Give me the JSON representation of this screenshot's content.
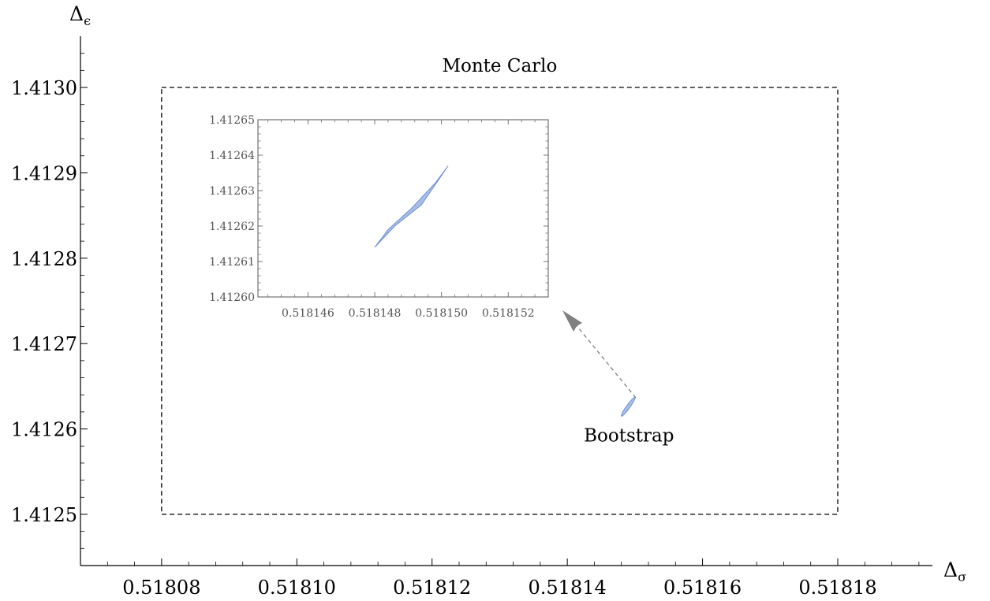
{
  "chart_data": [
    {
      "type": "scatter",
      "xlabel": "Δσ",
      "ylabel": "Δϵ",
      "xlim": [
        0.518068,
        0.518194
      ],
      "ylim": [
        1.41244,
        1.41306
      ],
      "x_ticks": [
        "0.51808",
        "0.51810",
        "0.51812",
        "0.51814",
        "0.51816",
        "0.51818"
      ],
      "x_tick_values": [
        0.51808,
        0.5181,
        0.51812,
        0.51814,
        0.51816,
        0.51818
      ],
      "y_ticks": [
        "1.4125",
        "1.4126",
        "1.4127",
        "1.4128",
        "1.4129",
        "1.4130"
      ],
      "y_tick_values": [
        1.4125,
        1.4126,
        1.4127,
        1.4128,
        1.4129,
        1.413
      ],
      "regions": [
        {
          "name": "Monte Carlo",
          "shape": "rectangle",
          "style": "dashed",
          "x_range": [
            0.51808,
            0.51818
          ],
          "y_range": [
            1.4125,
            1.413
          ]
        },
        {
          "name": "Bootstrap",
          "shape": "ellipse",
          "style": "filled",
          "center": [
            0.518149,
            1.412626
          ],
          "x_extent": [
            0.518148,
            0.51815
          ],
          "y_extent": [
            1.412615,
            1.412637
          ]
        }
      ],
      "annotations": [
        "Monte Carlo",
        "Bootstrap"
      ],
      "grid": false
    },
    {
      "type": "scatter",
      "inset": true,
      "xlim": [
        0.5181445,
        0.5181532
      ],
      "ylim": [
        1.4126,
        1.41265
      ],
      "x_ticks": [
        "0.518146",
        "0.518148",
        "0.518150",
        "0.518152"
      ],
      "x_tick_values": [
        0.518146,
        0.518148,
        0.51815,
        0.518152
      ],
      "y_ticks": [
        "1.41260",
        "1.41261",
        "1.41262",
        "1.41263",
        "1.41264",
        "1.41265"
      ],
      "y_tick_values": [
        1.4126,
        1.41261,
        1.41262,
        1.41263,
        1.41264,
        1.41265
      ],
      "region_outline": [
        [
          0.518148,
          1.412614
        ],
        [
          0.5181486,
          1.41262
        ],
        [
          0.5181494,
          1.412626
        ],
        [
          0.5181502,
          1.412637
        ],
        [
          0.5181498,
          1.412632
        ],
        [
          0.5181491,
          1.412625
        ],
        [
          0.5181484,
          1.412619
        ],
        [
          0.518148,
          1.412614
        ]
      ],
      "grid": false
    }
  ],
  "colors": {
    "region_fill": "#a7bfe8",
    "region_stroke": "#6f8fd0",
    "axis": "#000000",
    "inset_axis": "#666666",
    "arrow": "#808080"
  }
}
